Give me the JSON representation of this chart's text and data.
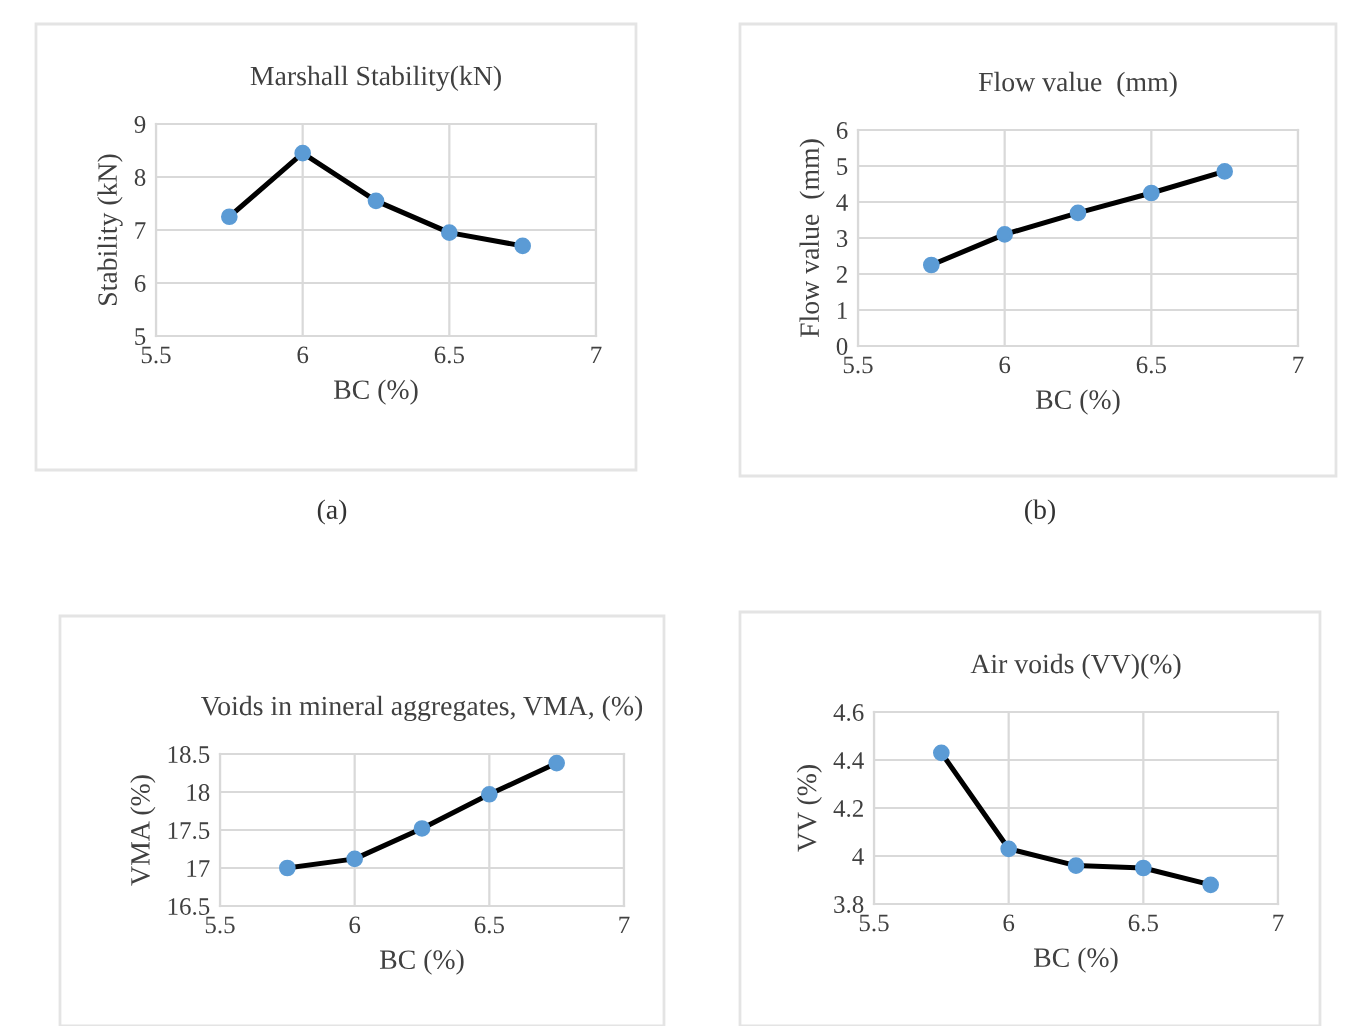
{
  "chart_data": [
    {
      "type": "line",
      "title": "Marshall Stability(kN)",
      "xlabel": "BC (%)",
      "ylabel": "Stability (kN)",
      "annotations": [
        "(a)"
      ],
      "x": [
        5.75,
        6,
        6.25,
        6.5,
        6.75
      ],
      "series": [
        {
          "color": "#5b9bd5",
          "values": [
            7.25,
            8.45,
            7.55,
            6.95,
            6.7
          ]
        }
      ],
      "xlim": [
        5.5,
        7
      ],
      "xticks": [
        5.5,
        6,
        6.5,
        7
      ],
      "ylim": [
        5,
        9
      ],
      "yticks": [
        5,
        6,
        7,
        8,
        9
      ],
      "grid": true,
      "marker": "circle",
      "line_style": "solid"
    },
    {
      "type": "line",
      "title": "Flow value  (mm)",
      "xlabel": "BC (%)",
      "ylabel": "Flow value  (mm)",
      "annotations": [
        "(b)"
      ],
      "x": [
        5.75,
        6,
        6.25,
        6.5,
        6.75
      ],
      "series": [
        {
          "color": "#5b9bd5",
          "values": [
            2.25,
            3.1,
            3.7,
            4.25,
            4.85
          ]
        }
      ],
      "xlim": [
        5.5,
        7
      ],
      "xticks": [
        5.5,
        6,
        6.5,
        7
      ],
      "ylim": [
        0,
        6
      ],
      "yticks": [
        0,
        1,
        2,
        3,
        4,
        5,
        6
      ],
      "grid": true,
      "marker": "circle",
      "line_style": "solid"
    },
    {
      "type": "line",
      "title": "Voids in mineral aggregates, VMA, (%)",
      "xlabel": "BC (%)",
      "ylabel": "VMA (%)",
      "x": [
        5.75,
        6,
        6.25,
        6.5,
        6.75
      ],
      "series": [
        {
          "color": "#5b9bd5",
          "values": [
            17.0,
            17.12,
            17.52,
            17.97,
            18.38
          ]
        }
      ],
      "xlim": [
        5.5,
        7
      ],
      "xticks": [
        5.5,
        6,
        6.5,
        7
      ],
      "ylim": [
        16.5,
        18.5
      ],
      "yticks": [
        16.5,
        17,
        17.5,
        18,
        18.5
      ],
      "grid": true,
      "marker": "circle",
      "line_style": "solid"
    },
    {
      "type": "line",
      "title": "Air voids (VV)(%)",
      "xlabel": "BC (%)",
      "ylabel": "VV (%)",
      "x": [
        5.75,
        6,
        6.25,
        6.5,
        6.75
      ],
      "series": [
        {
          "color": "#5b9bd5",
          "values": [
            4.43,
            4.03,
            3.96,
            3.95,
            3.88
          ]
        }
      ],
      "xlim": [
        5.5,
        7
      ],
      "xticks": [
        5.5,
        6,
        6.5,
        7
      ],
      "ylim": [
        3.8,
        4.6
      ],
      "yticks": [
        3.8,
        4,
        4.2,
        4.4,
        4.6
      ],
      "grid": true,
      "marker": "circle",
      "line_style": "solid"
    }
  ]
}
